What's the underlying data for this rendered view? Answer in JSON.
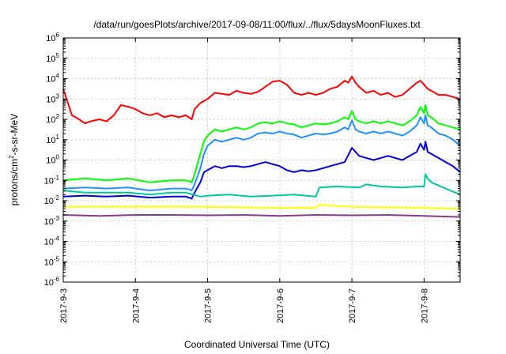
{
  "chart_data": {
    "type": "line",
    "title": "/data/run/goesPlots/archive/2017-09-08/11:00/flux/../flux/5daysMoonFluxes.txt",
    "xlabel": "Coordinated Universal Time (UTC)",
    "ylabel": {
      "prefix": "protons/cm",
      "sup": "2",
      "suffix": "-s-sr-MeV"
    },
    "y_scale": "log",
    "ylim_exponent": [
      -6,
      6
    ],
    "y_ticks": [
      {
        "base": "10",
        "exp": "-6"
      },
      {
        "base": "10",
        "exp": "-5"
      },
      {
        "base": "10",
        "exp": "-4"
      },
      {
        "base": "10",
        "exp": "-3"
      },
      {
        "base": "10",
        "exp": "-2"
      },
      {
        "base": "10",
        "exp": "-1"
      },
      {
        "base": "10",
        "exp": "0"
      },
      {
        "base": "10",
        "exp": "1"
      },
      {
        "base": "10",
        "exp": "2"
      },
      {
        "base": "10",
        "exp": "3"
      },
      {
        "base": "10",
        "exp": "4"
      },
      {
        "base": "10",
        "exp": "5"
      },
      {
        "base": "10",
        "exp": "6"
      }
    ],
    "x_ticks": [
      "2017-9-3",
      "2017-9-4",
      "2017-9-5",
      "2017-9-6",
      "2017-9-7",
      "2017-9-8"
    ],
    "xlim_days": [
      0,
      5.5
    ],
    "grid": true,
    "legend": "none",
    "series": [
      {
        "color": "#ff0000",
        "x": [
          0,
          0.12,
          0.22,
          0.3,
          0.38,
          0.5,
          0.6,
          0.7,
          0.8,
          0.92,
          1.0,
          1.1,
          1.2,
          1.3,
          1.4,
          1.5,
          1.6,
          1.7,
          1.78,
          1.82,
          1.9,
          2.0,
          2.1,
          2.2,
          2.3,
          2.4,
          2.5,
          2.6,
          2.7,
          2.8,
          2.9,
          3.0,
          3.1,
          3.2,
          3.3,
          3.4,
          3.5,
          3.6,
          3.7,
          3.8,
          3.9,
          3.95,
          4.0,
          4.05,
          4.1,
          4.2,
          4.3,
          4.4,
          4.5,
          4.6,
          4.7,
          4.8,
          4.9,
          4.95,
          5.0,
          5.05,
          5.1,
          5.2,
          5.3,
          5.4,
          5.5
        ],
        "y": [
          3.5,
          2.2,
          2.0,
          1.8,
          1.9,
          2.0,
          1.9,
          2.2,
          2.7,
          2.6,
          2.5,
          2.3,
          2.2,
          2.3,
          2.1,
          2.2,
          2.1,
          2.2,
          2.0,
          2.5,
          2.8,
          3.0,
          3.3,
          3.25,
          3.2,
          3.4,
          3.3,
          3.25,
          3.35,
          3.6,
          3.85,
          3.9,
          3.7,
          3.3,
          3.2,
          3.3,
          3.2,
          3.3,
          3.5,
          3.6,
          3.9,
          3.8,
          4.1,
          3.8,
          3.6,
          3.3,
          3.4,
          3.2,
          3.3,
          3.1,
          3.2,
          3.5,
          3.8,
          3.9,
          3.7,
          3.5,
          3.4,
          3.2,
          3.2,
          3.1,
          3.0
        ]
      },
      {
        "color": "#00ff00",
        "x": [
          0,
          0.3,
          0.6,
          0.9,
          1.2,
          1.5,
          1.7,
          1.78,
          1.82,
          1.9,
          1.95,
          2.0,
          2.1,
          2.2,
          2.3,
          2.4,
          2.5,
          2.6,
          2.7,
          2.8,
          2.9,
          3.0,
          3.1,
          3.2,
          3.3,
          3.4,
          3.5,
          3.6,
          3.7,
          3.8,
          3.9,
          3.95,
          4.0,
          4.05,
          4.1,
          4.2,
          4.3,
          4.4,
          4.5,
          4.6,
          4.7,
          4.8,
          4.9,
          4.95,
          5.0,
          5.02,
          5.05,
          5.1,
          5.2,
          5.3,
          5.4,
          5.5
        ],
        "y": [
          -1.0,
          -0.9,
          -1.0,
          -0.9,
          -1.1,
          -1.0,
          -1.0,
          -1.1,
          -0.7,
          0.3,
          0.9,
          1.2,
          1.5,
          1.4,
          1.5,
          1.6,
          1.5,
          1.6,
          1.8,
          1.85,
          1.8,
          1.9,
          1.8,
          1.75,
          1.6,
          1.7,
          1.8,
          1.75,
          1.8,
          1.9,
          2.1,
          2.0,
          2.4,
          2.0,
          1.9,
          1.8,
          1.9,
          1.8,
          1.9,
          1.8,
          1.7,
          1.9,
          2.2,
          2.6,
          2.3,
          2.7,
          2.2,
          2.1,
          1.8,
          1.7,
          1.6,
          1.5
        ]
      },
      {
        "color": "#1e90ff",
        "x": [
          0,
          0.3,
          0.6,
          0.9,
          1.2,
          1.5,
          1.7,
          1.78,
          1.82,
          1.9,
          1.95,
          2.0,
          2.1,
          2.2,
          2.3,
          2.4,
          2.5,
          2.6,
          2.7,
          2.8,
          2.9,
          3.0,
          3.1,
          3.2,
          3.3,
          3.4,
          3.5,
          3.6,
          3.7,
          3.8,
          3.9,
          3.95,
          4.0,
          4.05,
          4.1,
          4.2,
          4.3,
          4.4,
          4.5,
          4.6,
          4.7,
          4.8,
          4.9,
          4.95,
          5.0,
          5.02,
          5.05,
          5.1,
          5.2,
          5.3,
          5.4,
          5.5
        ],
        "y": [
          -1.4,
          -1.35,
          -1.4,
          -1.35,
          -1.5,
          -1.4,
          -1.4,
          -1.5,
          -1.2,
          -0.4,
          0.3,
          0.7,
          1.0,
          0.9,
          1.0,
          1.1,
          1.0,
          1.1,
          1.3,
          1.35,
          1.3,
          1.4,
          1.3,
          1.25,
          1.1,
          1.2,
          1.3,
          1.25,
          1.3,
          1.4,
          1.6,
          1.5,
          1.95,
          1.5,
          1.4,
          1.3,
          1.4,
          1.3,
          1.4,
          1.3,
          1.2,
          1.4,
          1.7,
          2.1,
          1.8,
          2.2,
          1.7,
          1.6,
          1.3,
          1.2,
          1.0,
          0.7
        ]
      },
      {
        "color": "#0000dd",
        "x": [
          0,
          0.3,
          0.6,
          0.9,
          1.2,
          1.5,
          1.7,
          1.78,
          1.82,
          1.9,
          1.95,
          2.0,
          2.1,
          2.2,
          2.3,
          2.4,
          2.5,
          2.6,
          2.7,
          2.8,
          2.9,
          3.0,
          3.1,
          3.2,
          3.3,
          3.4,
          3.5,
          3.6,
          3.7,
          3.8,
          3.9,
          4.0,
          4.05,
          4.1,
          4.2,
          4.3,
          4.4,
          4.5,
          4.6,
          4.7,
          4.8,
          4.9,
          4.95,
          5.0,
          5.02,
          5.05,
          5.1,
          5.2,
          5.3,
          5.4,
          5.5
        ],
        "y": [
          -1.8,
          -1.75,
          -1.8,
          -1.75,
          -1.85,
          -1.8,
          -1.8,
          -1.9,
          -1.6,
          -1.1,
          -0.6,
          -0.5,
          -0.3,
          -0.4,
          -0.3,
          -0.3,
          -0.35,
          -0.3,
          -0.2,
          -0.1,
          -0.2,
          -0.3,
          -0.5,
          -0.6,
          -0.5,
          -0.55,
          -0.5,
          -0.4,
          -0.3,
          -0.2,
          -0.1,
          0.6,
          0.4,
          0.2,
          0.1,
          0.0,
          0.1,
          0.2,
          0.1,
          0.0,
          0.2,
          0.4,
          0.8,
          0.5,
          0.9,
          0.4,
          0.3,
          0.1,
          -0.1,
          -0.3,
          -0.6
        ]
      },
      {
        "color": "#00c8a0",
        "x": [
          0,
          0.3,
          0.6,
          0.9,
          1.2,
          1.5,
          1.7,
          1.8,
          1.9,
          2.0,
          2.3,
          2.6,
          2.9,
          3.2,
          3.5,
          3.55,
          3.8,
          4.1,
          4.2,
          4.4,
          4.7,
          4.9,
          5.0,
          5.02,
          5.05,
          5.1,
          5.3,
          5.5
        ],
        "y": [
          -1.5,
          -1.6,
          -1.6,
          -1.6,
          -1.7,
          -1.6,
          -1.6,
          -1.7,
          -1.8,
          -1.75,
          -1.7,
          -1.8,
          -1.75,
          -1.7,
          -1.8,
          -1.35,
          -1.3,
          -1.35,
          -1.2,
          -1.3,
          -1.35,
          -1.3,
          -1.3,
          -0.7,
          -0.9,
          -1.1,
          -1.4,
          -1.7
        ]
      },
      {
        "color": "#ffff00",
        "x": [
          0,
          1.0,
          2.0,
          3.0,
          3.5,
          3.55,
          4.0,
          5.0,
          5.5
        ],
        "y": [
          -2.3,
          -2.3,
          -2.3,
          -2.35,
          -2.35,
          -2.2,
          -2.3,
          -2.35,
          -2.4
        ]
      },
      {
        "color": "#8b3a8b",
        "x": [
          0,
          0.5,
          1.0,
          1.5,
          2.0,
          2.5,
          3.0,
          3.5,
          4.0,
          4.5,
          5.0,
          5.5
        ],
        "y": [
          -2.7,
          -2.75,
          -2.7,
          -2.7,
          -2.72,
          -2.7,
          -2.75,
          -2.7,
          -2.72,
          -2.7,
          -2.75,
          -2.8
        ]
      }
    ]
  }
}
